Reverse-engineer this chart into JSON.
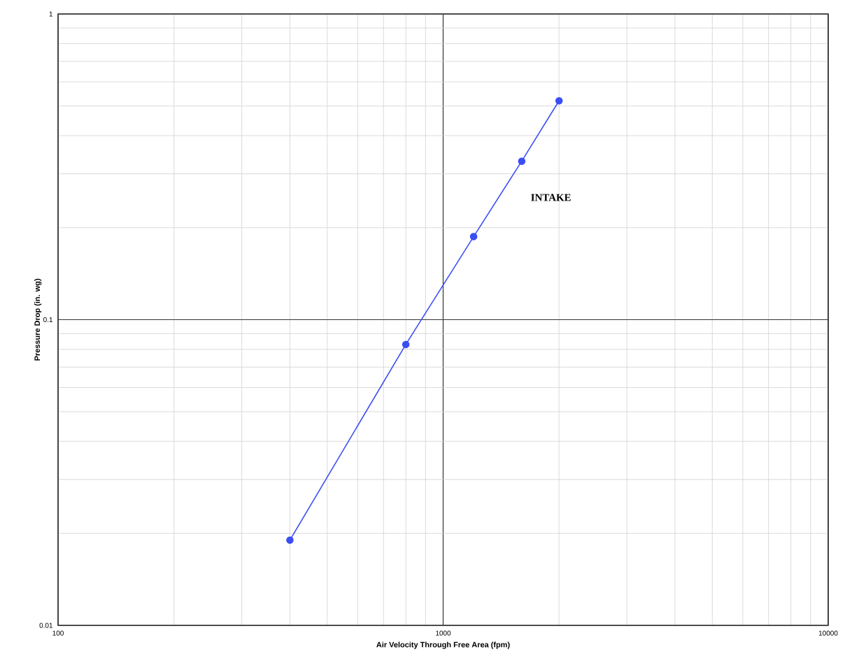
{
  "chart_data": {
    "type": "line",
    "xlabel": "Air Velocity  Through Free Area (fpm)",
    "ylabel": "Pressure Drop (in. wg)",
    "log": "xy",
    "grid": true,
    "marker": "circle",
    "line_style": "solid",
    "xlim": [
      100,
      10000
    ],
    "ylim": [
      0.01,
      1
    ],
    "xticks": [
      100,
      1000,
      10000
    ],
    "yticks": [
      0.01,
      0.1,
      1
    ],
    "x": [
      400,
      800,
      1200,
      1600,
      2000
    ],
    "series": [
      {
        "color": "#3b4ef5",
        "values": [
          0.019,
          0.083,
          0.187,
          0.33,
          0.52
        ]
      }
    ],
    "annotations": [
      "INTAKE"
    ]
  }
}
